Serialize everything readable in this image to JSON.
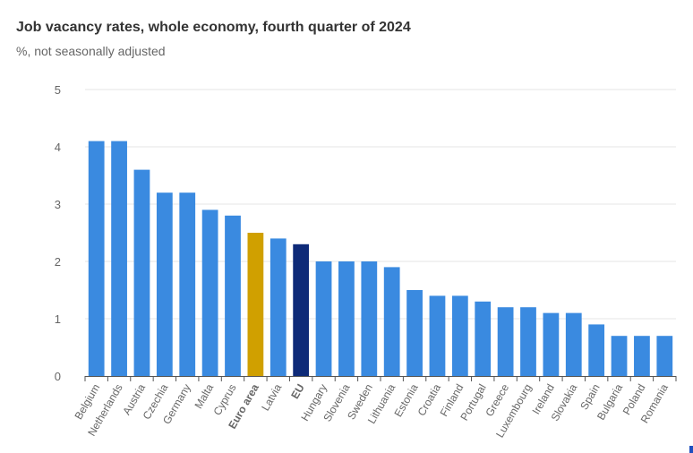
{
  "header": {
    "title": "Job vacancy rates, whole economy, fourth quarter of 2024",
    "subtitle": "%, not seasonally adjusted"
  },
  "colors": {
    "country": "#3a8ae0",
    "euro_area": "#d0a000",
    "eu": "#0e2a78",
    "grid": "#e6e6e6",
    "axis": "#555555"
  },
  "chart_data": {
    "type": "bar",
    "title": "Job vacancy rates, whole economy, fourth quarter of 2024",
    "subtitle": "%, not seasonally adjusted",
    "xlabel": "",
    "ylabel": "",
    "ylim": [
      0,
      5
    ],
    "yticks": [
      0,
      1,
      2,
      3,
      4,
      5
    ],
    "grid": true,
    "legend": "none",
    "categories": [
      "Belgium",
      "Netherlands",
      "Austria",
      "Czechia",
      "Germany",
      "Malta",
      "Cyprus",
      "Euro area",
      "Latvia",
      "EU",
      "Hungary",
      "Slovenia",
      "Sweden",
      "Lithuania",
      "Estonia",
      "Croatia",
      "Finland",
      "Portugal",
      "Greece",
      "Luxembourg",
      "Ireland",
      "Slovakia",
      "Spain",
      "Bulgaria",
      "Poland",
      "Romania"
    ],
    "values": [
      4.1,
      4.1,
      3.6,
      3.2,
      3.2,
      2.9,
      2.8,
      2.5,
      2.4,
      2.3,
      2.0,
      2.0,
      2.0,
      1.9,
      1.5,
      1.4,
      1.4,
      1.3,
      1.2,
      1.2,
      1.1,
      1.1,
      0.9,
      0.7,
      0.7,
      0.7
    ],
    "highlight": {
      "Euro area": "euro_area",
      "EU": "eu"
    },
    "bold_labels": [
      "Euro area",
      "EU"
    ]
  }
}
